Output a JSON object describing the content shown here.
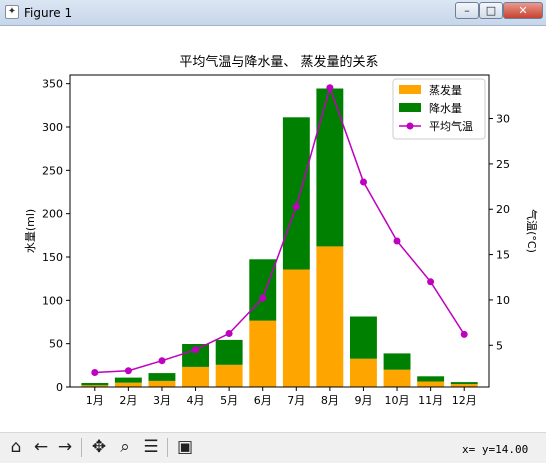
{
  "window": {
    "title": "Figure 1",
    "minimize": "–",
    "maximize": "□",
    "close": "✕"
  },
  "toolbar": {
    "icons": [
      "home-icon",
      "back-arrow-icon",
      "forward-arrow-icon",
      "pan-icon",
      "zoom-icon",
      "configure-subplots-icon",
      "save-icon"
    ],
    "status": "x= y=14.00"
  },
  "chart_data": {
    "type": "bar",
    "title": "平均气温与降水量、 蒸发量的关系",
    "categories": [
      "1月",
      "2月",
      "3月",
      "4月",
      "5月",
      "6月",
      "7月",
      "8月",
      "9月",
      "10月",
      "11月",
      "12月"
    ],
    "ylabel": "水量(ml)",
    "ylim": [
      0,
      360
    ],
    "yticks": [
      0,
      50,
      100,
      150,
      200,
      250,
      300,
      350
    ],
    "y2label": "气温(°C)",
    "y2lim": [
      0.4,
      34.8
    ],
    "y2ticks": [
      5,
      10,
      15,
      20,
      25,
      30
    ],
    "stacked": true,
    "series": [
      {
        "name": "蒸发量",
        "kind": "bar",
        "color": "#ffa500",
        "values": [
          2.0,
          4.9,
          7.0,
          23.2,
          25.6,
          76.7,
          135.6,
          162.2,
          32.6,
          20.0,
          6.4,
          3.3
        ]
      },
      {
        "name": "降水量",
        "kind": "bar",
        "color": "#008000",
        "values": [
          2.6,
          5.9,
          9.0,
          26.4,
          28.7,
          70.7,
          175.6,
          182.2,
          48.7,
          18.8,
          6.0,
          2.3
        ]
      },
      {
        "name": "平均气温",
        "kind": "line",
        "axis": "right",
        "color": "#bf00bf",
        "marker": "circle",
        "values": [
          2.0,
          2.2,
          3.3,
          4.5,
          6.3,
          10.2,
          20.3,
          33.4,
          23.0,
          16.5,
          12.0,
          6.2
        ]
      }
    ],
    "legend": "top-right",
    "grid": false
  }
}
